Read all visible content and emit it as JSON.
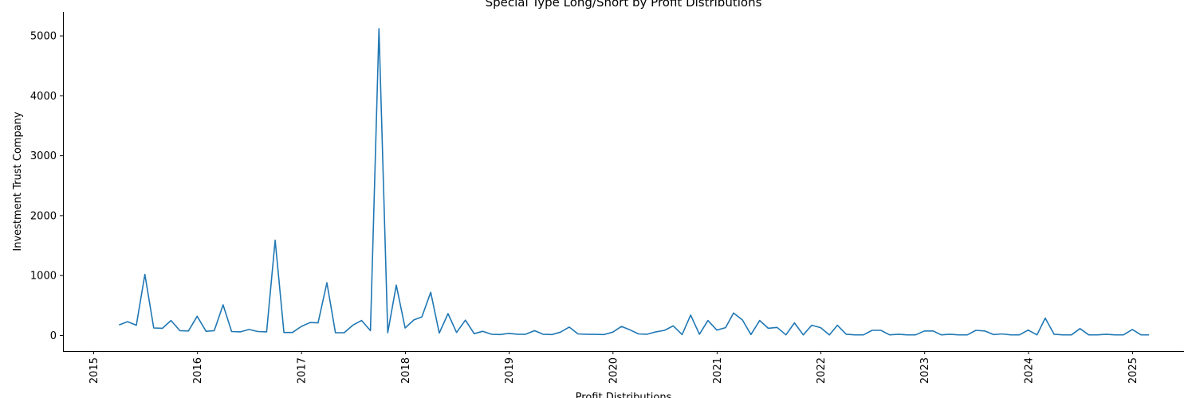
{
  "chart_data": {
    "type": "line",
    "title": "Special Type Long/Short by Profit Distributions",
    "xlabel": "Profit Distributions",
    "ylabel": "Investment Trust Company",
    "xlim": [
      "2014-09-15",
      "2025-07-01"
    ],
    "ylim": [
      -260,
      5400
    ],
    "x_ticks": [
      "2015",
      "2016",
      "2017",
      "2018",
      "2019",
      "2020",
      "2021",
      "2022",
      "2023",
      "2024",
      "2025"
    ],
    "y_ticks": [
      0,
      1000,
      2000,
      3000,
      4000,
      5000
    ],
    "grid": false,
    "color": "#1f77b4",
    "series": [
      {
        "x": [
          "2015-03-31",
          "2015-04-30",
          "2015-05-31",
          "2015-06-30",
          "2015-07-31",
          "2015-08-31",
          "2015-09-30",
          "2015-10-31",
          "2015-11-30",
          "2015-12-31",
          "2016-01-31",
          "2016-02-29",
          "2016-03-31",
          "2016-04-30",
          "2016-05-31",
          "2016-06-30",
          "2016-07-31",
          "2016-08-31",
          "2016-09-30",
          "2016-10-31",
          "2016-11-30",
          "2016-12-31",
          "2017-01-31",
          "2017-02-28",
          "2017-03-31",
          "2017-04-30",
          "2017-05-31",
          "2017-06-30",
          "2017-07-31",
          "2017-08-31",
          "2017-09-30",
          "2017-10-31",
          "2017-11-30",
          "2017-12-31",
          "2018-01-31",
          "2018-02-28",
          "2018-03-31",
          "2018-04-30",
          "2018-05-31",
          "2018-06-30",
          "2018-07-31",
          "2018-08-31",
          "2018-09-30",
          "2018-10-31",
          "2018-11-30",
          "2018-12-31",
          "2019-01-31",
          "2019-02-28",
          "2019-03-31",
          "2019-04-30",
          "2019-05-31",
          "2019-06-30",
          "2019-07-31",
          "2019-08-31",
          "2019-09-30",
          "2019-10-31",
          "2019-11-30",
          "2019-12-31",
          "2020-01-31",
          "2020-02-29",
          "2020-03-31",
          "2020-04-30",
          "2020-05-31",
          "2020-06-30",
          "2020-07-31",
          "2020-08-31",
          "2020-09-30",
          "2020-10-31",
          "2020-11-30",
          "2020-12-31",
          "2021-01-31",
          "2021-02-28",
          "2021-03-31",
          "2021-04-30",
          "2021-05-31",
          "2021-06-30",
          "2021-07-31",
          "2021-08-31",
          "2021-09-30",
          "2021-10-31",
          "2021-11-30",
          "2021-12-31",
          "2022-01-31",
          "2022-02-28",
          "2022-03-31",
          "2022-04-30",
          "2022-05-31",
          "2022-06-30",
          "2022-07-31",
          "2022-08-31",
          "2022-09-30",
          "2022-10-31",
          "2022-11-30",
          "2022-12-31",
          "2023-01-31",
          "2023-02-28",
          "2023-03-31",
          "2023-04-30",
          "2023-05-31",
          "2023-06-30",
          "2023-07-31",
          "2023-08-31",
          "2023-09-30",
          "2023-10-31",
          "2023-11-30",
          "2023-12-31",
          "2024-01-31",
          "2024-02-29",
          "2024-03-31",
          "2024-04-30",
          "2024-05-31",
          "2024-06-30",
          "2024-07-31",
          "2024-08-31",
          "2024-09-30",
          "2024-10-31",
          "2024-11-30",
          "2024-12-31",
          "2025-01-31",
          "2025-02-28"
        ],
        "y": [
          175,
          230,
          170,
          1020,
          125,
          120,
          250,
          80,
          75,
          320,
          70,
          80,
          510,
          65,
          60,
          100,
          65,
          60,
          1590,
          50,
          50,
          150,
          215,
          210,
          880,
          45,
          45,
          170,
          250,
          80,
          5120,
          45,
          840,
          125,
          260,
          310,
          720,
          40,
          365,
          50,
          255,
          30,
          70,
          20,
          15,
          35,
          20,
          20,
          80,
          20,
          15,
          55,
          140,
          25,
          20,
          18,
          15,
          55,
          150,
          95,
          25,
          20,
          60,
          85,
          160,
          15,
          340,
          20,
          250,
          90,
          130,
          375,
          260,
          15,
          250,
          120,
          135,
          10,
          210,
          10,
          170,
          130,
          10,
          170,
          20,
          10,
          10,
          85,
          85,
          10,
          20,
          10,
          10,
          75,
          75,
          10,
          20,
          10,
          10,
          85,
          75,
          15,
          25,
          10,
          10,
          90,
          10,
          290,
          20,
          10,
          10,
          115,
          10,
          10,
          20,
          10,
          10,
          100,
          10,
          10
        ]
      }
    ]
  }
}
